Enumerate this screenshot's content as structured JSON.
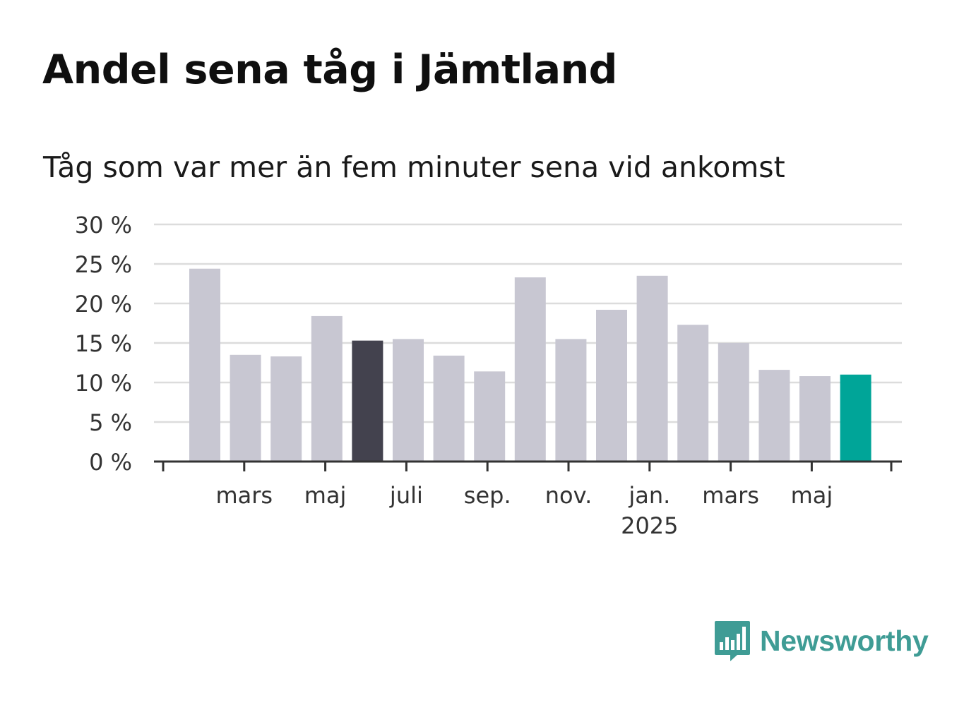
{
  "title": "Andel sena tåg i Jämtland",
  "subtitle": "Tåg som var mer än fem minuter sena vid ankomst",
  "brand": {
    "name": "Newsworthy",
    "icon": "newsworthy-bar-chart-bubble-icon",
    "color": "#3f9c95"
  },
  "chart_data": {
    "type": "bar",
    "ylim": [
      0,
      30
    ],
    "yticks": [
      {
        "value": 0,
        "label": "0 %"
      },
      {
        "value": 5,
        "label": "5 %"
      },
      {
        "value": 10,
        "label": "10 %"
      },
      {
        "value": 15,
        "label": "15 %"
      },
      {
        "value": 20,
        "label": "20 %"
      },
      {
        "value": 25,
        "label": "25 %"
      },
      {
        "value": 30,
        "label": "30 %"
      }
    ],
    "grid": true,
    "categories": [
      "2024-02",
      "2024-03",
      "2024-04",
      "2024-05",
      "2024-06",
      "2024-07",
      "2024-08",
      "2024-09",
      "2024-10",
      "2024-11",
      "2024-12",
      "2025-01",
      "2025-02",
      "2025-03",
      "2025-04",
      "2025-05",
      "2025-06"
    ],
    "values": [
      24.4,
      13.5,
      13.3,
      18.4,
      15.3,
      15.5,
      13.4,
      11.4,
      23.3,
      15.5,
      19.2,
      23.5,
      17.3,
      15.0,
      11.6,
      10.8,
      11.0
    ],
    "colors": {
      "default": "#c8c7d2",
      "highlight_2024_06": "#43424e",
      "latest_2025_06": "#00a598"
    },
    "xticks": [
      {
        "label": "mars",
        "sub": ""
      },
      {
        "label": "maj",
        "sub": ""
      },
      {
        "label": "juli",
        "sub": ""
      },
      {
        "label": "sep.",
        "sub": ""
      },
      {
        "label": "nov.",
        "sub": ""
      },
      {
        "label": "jan.",
        "sub": "2025"
      },
      {
        "label": "mars",
        "sub": ""
      },
      {
        "label": "maj",
        "sub": ""
      }
    ]
  }
}
